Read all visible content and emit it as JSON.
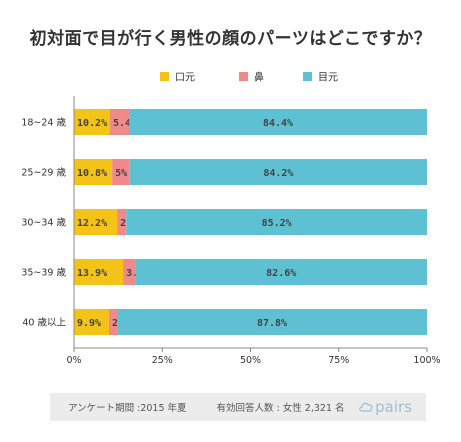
{
  "chart_data": {
    "type": "bar",
    "orientation": "horizontal",
    "stacked": true,
    "title": "初対面で目が行く男性の顔のパーツはどこですか？",
    "categories": [
      "18~24 歳",
      "25~29 歳",
      "30~34 歳",
      "35~39 歳",
      "40 歳以上"
    ],
    "series": [
      {
        "name": "口元",
        "color": "#f3c317",
        "values": [
          10.2,
          10.8,
          12.2,
          13.9,
          9.9
        ],
        "labels": [
          "10.2%",
          "10.8%",
          "12.2%",
          "13.9%",
          "9.9%"
        ]
      },
      {
        "name": "鼻",
        "color": "#f08a8a",
        "values": [
          5.4,
          5,
          2.6,
          3.5,
          2.3
        ],
        "labels": [
          "5.4%",
          "5%",
          "2.6%",
          "3.5%",
          "2.3%"
        ]
      },
      {
        "name": "目元",
        "color": "#5ec1d3",
        "values": [
          84.4,
          84.2,
          85.2,
          82.6,
          87.8
        ],
        "labels": [
          "84.4%",
          "84.2%",
          "85.2%",
          "82.6%",
          "87.8%"
        ]
      }
    ],
    "xlim": [
      0,
      100
    ],
    "x_ticks": [
      "0%",
      "25%",
      "50%",
      "75%",
      "100%"
    ],
    "legend_position": "top",
    "grid": false
  },
  "footer": {
    "source": "アンケート期間 :2015 年夏",
    "respondents": "有効回答人数 : 女性 2,321 名",
    "logo_text": "pairs"
  }
}
